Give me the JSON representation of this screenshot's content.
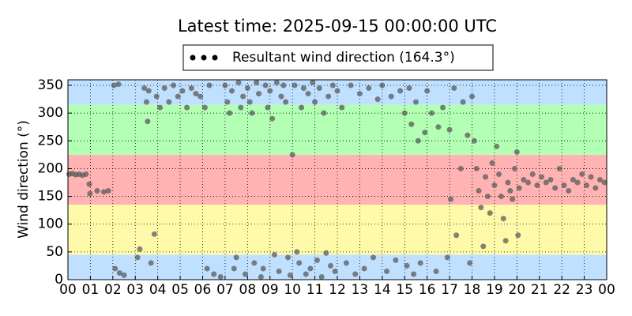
{
  "chart_data": {
    "type": "scatter",
    "title": "Latest time: 2025-09-15 00:00:00 UTC",
    "y_label": "Wind direction (°)",
    "xlim": [
      0,
      24
    ],
    "xticks": [
      {
        "value": 0,
        "label": "00"
      },
      {
        "value": 1,
        "label": "01"
      },
      {
        "value": 2,
        "label": "02"
      },
      {
        "value": 3,
        "label": "03"
      },
      {
        "value": 4,
        "label": "04"
      },
      {
        "value": 5,
        "label": "05"
      },
      {
        "value": 6,
        "label": "06"
      },
      {
        "value": 7,
        "label": "07"
      },
      {
        "value": 8,
        "label": "08"
      },
      {
        "value": 9,
        "label": "09"
      },
      10,
      11,
      12,
      13,
      14,
      15,
      16,
      17,
      18,
      19,
      20,
      21,
      22,
      23,
      {
        "value": 24,
        "label": "00"
      }
    ],
    "ylim": [
      0,
      360
    ],
    "yticks": [
      0,
      50,
      100,
      150,
      200,
      250,
      300,
      350
    ],
    "grid": true,
    "legend": "upper center",
    "bands": [
      {
        "from": 0,
        "to": 45,
        "color": "#bfe0ff"
      },
      {
        "from": 45,
        "to": 135,
        "color": "#fffaaa"
      },
      {
        "from": 135,
        "to": 225,
        "color": "#ffb3b3"
      },
      {
        "from": 225,
        "to": 315,
        "color": "#b3ffb3"
      },
      {
        "from": 315,
        "to": 360,
        "color": "#bfe0ff"
      }
    ],
    "series": [
      {
        "name": "Resultant wind direction (164.3°)",
        "color": "#5a5a5a",
        "x": [
          0.05,
          0.2,
          0.35,
          0.5,
          0.65,
          0.8,
          0.95,
          0.98,
          1.3,
          1.6,
          1.8,
          2.05,
          2.25,
          2.1,
          2.3,
          2.5,
          3.1,
          3.2,
          3.4,
          3.5,
          3.55,
          3.6,
          3.7,
          3.85,
          3.95,
          4.1,
          4.3,
          4.5,
          4.7,
          4.9,
          5.1,
          5.3,
          5.5,
          5.7,
          5.9,
          6.1,
          6.3,
          6.2,
          6.5,
          6.8,
          7.0,
          7.1,
          7.2,
          7.3,
          7.4,
          7.5,
          7.6,
          7.7,
          7.8,
          7.9,
          8.0,
          8.1,
          8.2,
          8.3,
          8.4,
          8.5,
          8.6,
          8.7,
          8.8,
          8.9,
          9.0,
          9.1,
          9.2,
          9.3,
          9.4,
          9.5,
          9.6,
          9.7,
          9.8,
          9.9,
          10.0,
          10.1,
          10.2,
          10.3,
          10.4,
          10.5,
          10.6,
          10.7,
          10.8,
          10.9,
          11.0,
          11.1,
          11.2,
          11.3,
          11.4,
          11.5,
          11.6,
          11.7,
          11.8,
          11.9,
          12.0,
          12.2,
          12.4,
          12.6,
          12.8,
          13.0,
          13.2,
          13.4,
          13.6,
          13.8,
          14.0,
          14.2,
          14.4,
          14.6,
          14.8,
          15.0,
          15.1,
          15.2,
          15.3,
          15.4,
          15.5,
          15.6,
          15.7,
          15.9,
          16.0,
          16.2,
          16.4,
          16.5,
          16.7,
          16.9,
          17.0,
          17.05,
          17.2,
          17.3,
          17.5,
          17.6,
          17.8,
          17.9,
          18.0,
          18.1,
          18.2,
          18.3,
          18.4,
          18.5,
          18.6,
          18.7,
          18.8,
          18.9,
          19.0,
          19.1,
          19.2,
          19.3,
          19.4,
          19.5,
          19.6,
          19.7,
          19.8,
          19.9,
          20.0,
          20.05,
          20.1,
          20.3,
          20.5,
          20.7,
          20.9,
          21.1,
          21.3,
          21.5,
          21.7,
          21.9,
          22.1,
          22.3,
          22.5,
          22.7,
          22.9,
          23.1,
          23.3,
          23.5,
          23.7,
          23.9
        ],
        "values": [
          190,
          191,
          189,
          190,
          188,
          190,
          172,
          155,
          160,
          158,
          160,
          350,
          352,
          20,
          12,
          8,
          40,
          55,
          345,
          320,
          285,
          340,
          30,
          82,
          330,
          310,
          345,
          320,
          350,
          330,
          340,
          310,
          345,
          335,
          330,
          310,
          350,
          20,
          10,
          5,
          350,
          320,
          300,
          340,
          20,
          40,
          355,
          310,
          330,
          10,
          345,
          320,
          300,
          30,
          355,
          335,
          5,
          20,
          350,
          310,
          340,
          290,
          45,
          355,
          15,
          330,
          350,
          320,
          40,
          8,
          225,
          350,
          50,
          30,
          310,
          345,
          10,
          335,
          20,
          355,
          320,
          35,
          345,
          5,
          300,
          48,
          330,
          25,
          350,
          15,
          340,
          310,
          30,
          350,
          10,
          335,
          20,
          345,
          40,
          325,
          350,
          15,
          330,
          35,
          340,
          300,
          25,
          345,
          280,
          10,
          320,
          250,
          30,
          265,
          340,
          300,
          15,
          275,
          310,
          40,
          270,
          145,
          345,
          80,
          200,
          320,
          260,
          30,
          330,
          250,
          200,
          160,
          130,
          60,
          185,
          150,
          120,
          210,
          170,
          240,
          190,
          150,
          110,
          70,
          175,
          160,
          145,
          200,
          230,
          80,
          165,
          180,
          175,
          190,
          170,
          185,
          175,
          180,
          165,
          200,
          170,
          160,
          180,
          175,
          190,
          170,
          185,
          165,
          180,
          175
        ]
      }
    ]
  }
}
